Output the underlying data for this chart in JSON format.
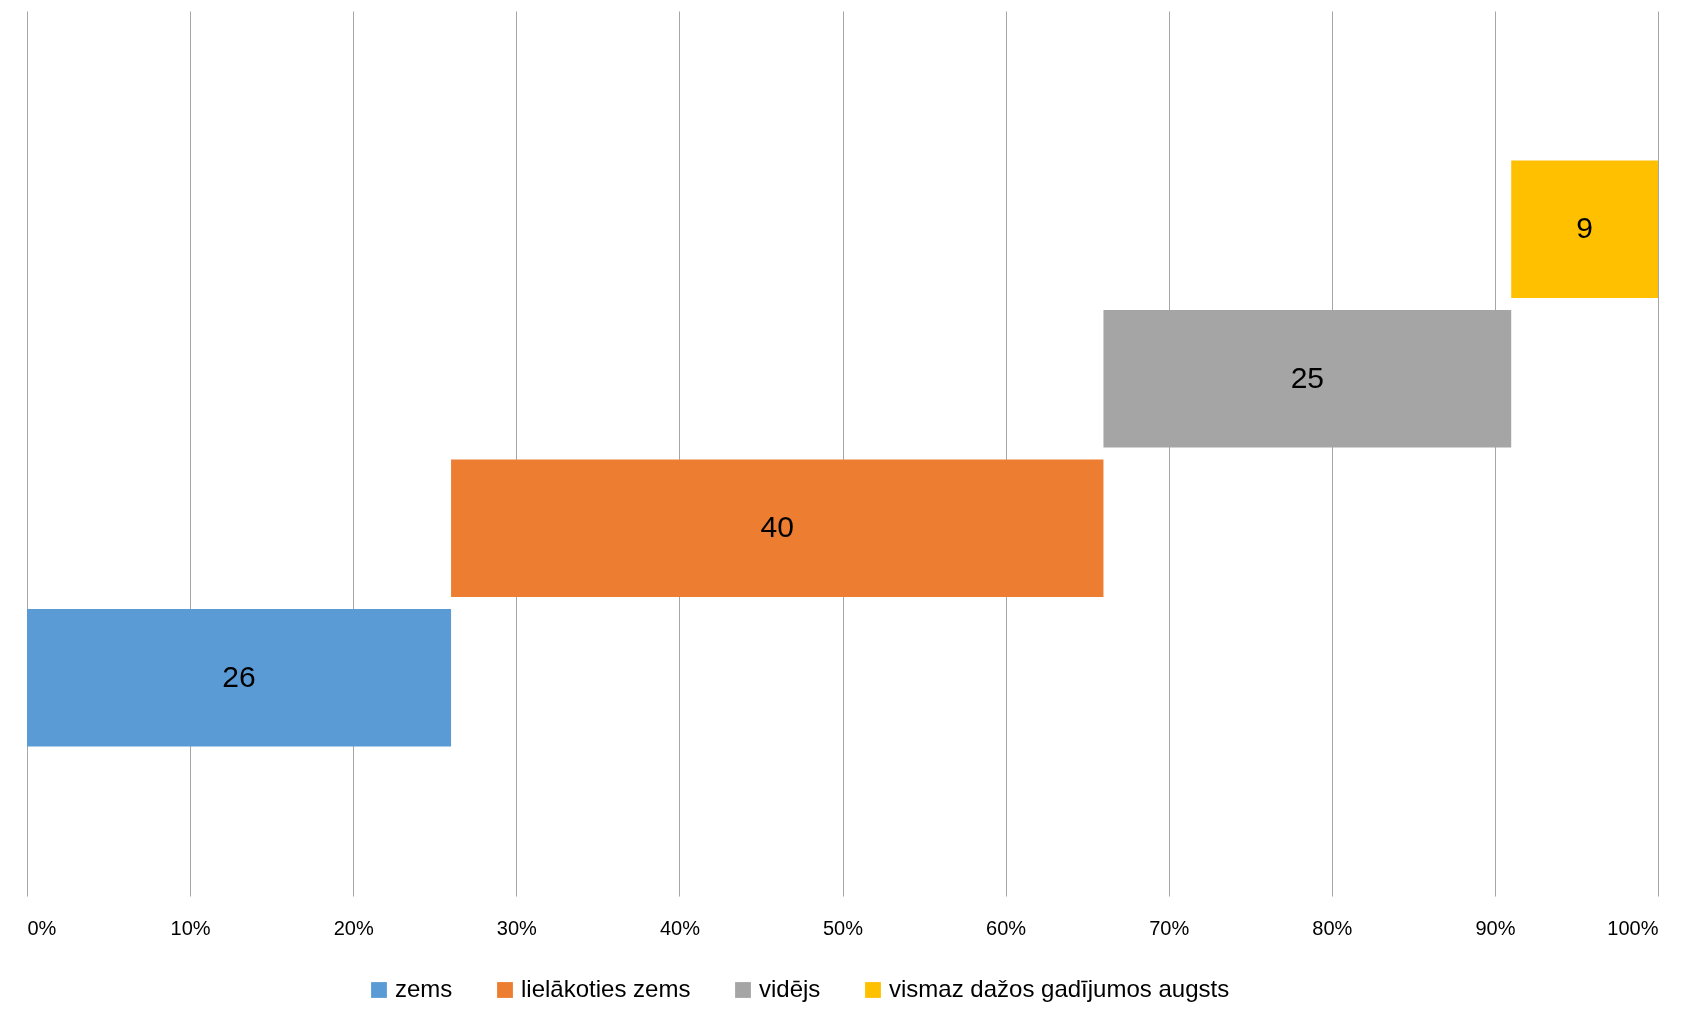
{
  "chart_data": {
    "type": "bar",
    "orientation": "horizontal",
    "categories": [
      null,
      null,
      null,
      null
    ],
    "series": [
      {
        "name": "zems",
        "color": "#5b9bd5",
        "values": [
          null,
          null,
          null,
          26
        ],
        "base": [
          null,
          null,
          null,
          0
        ]
      },
      {
        "name": "lielākoties zems",
        "color": "#ed7d31",
        "values": [
          null,
          null,
          40,
          null
        ],
        "base": [
          null,
          null,
          26,
          null
        ]
      },
      {
        "name": "vidējs",
        "color": "#a5a5a5",
        "values": [
          null,
          25,
          null,
          null
        ],
        "base": [
          null,
          66,
          null,
          null
        ]
      },
      {
        "name": "vismaz dažos gadījumos augsts",
        "color": "#ffc000",
        "values": [
          9,
          null,
          null,
          null
        ],
        "base": [
          91,
          null,
          null,
          null
        ]
      }
    ],
    "xlim": [
      0,
      100
    ],
    "xticks": [
      {
        "value": 0,
        "label": "0%"
      },
      {
        "value": 10,
        "label": "10%"
      },
      {
        "value": 20,
        "label": "20%"
      },
      {
        "value": 30,
        "label": "30%"
      },
      {
        "value": 40,
        "label": "40%"
      },
      {
        "value": 50,
        "label": "50%"
      },
      {
        "value": 60,
        "label": "60%"
      },
      {
        "value": 70,
        "label": "70%"
      },
      {
        "value": 80,
        "label": "80%"
      },
      {
        "value": 90,
        "label": "90%"
      },
      {
        "value": 100,
        "label": "100%"
      }
    ],
    "grid": "x",
    "legend": "bottom",
    "tick_labels": "x",
    "data_labels": true
  }
}
